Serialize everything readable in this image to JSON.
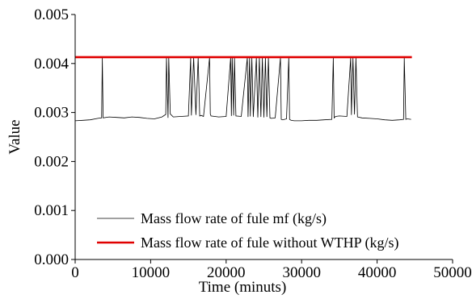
{
  "chart_data": {
    "type": "line",
    "title": "",
    "xlabel": "Time (minuts)",
    "ylabel": "Value",
    "xlim": [
      0,
      50000
    ],
    "ylim": [
      0,
      0.005
    ],
    "xticks": [
      {
        "value": 0,
        "label": "0"
      },
      {
        "value": 10000,
        "label": "10000"
      },
      {
        "value": 20000,
        "label": "20000"
      },
      {
        "value": 30000,
        "label": "30000"
      },
      {
        "value": 40000,
        "label": "40000"
      },
      {
        "value": 50000,
        "label": "50000"
      }
    ],
    "yticks": [
      {
        "value": 0,
        "label": "0.000"
      },
      {
        "value": 0.001,
        "label": "0.001"
      },
      {
        "value": 0.002,
        "label": "0.002"
      },
      {
        "value": 0.003,
        "label": "0.003"
      },
      {
        "value": 0.004,
        "label": "0.004"
      },
      {
        "value": 0.005,
        "label": "0.005"
      }
    ],
    "grid": false,
    "legend_position": "bottom-right",
    "series": [
      {
        "name": "Mass flow rate of fule mf (kg/s)",
        "color": "#000000",
        "x": [
          0,
          1000,
          2000,
          3000,
          3500,
          3600,
          3700,
          4500,
          5500,
          6500,
          7500,
          8500,
          9500,
          10500,
          11500,
          12000,
          12100,
          12300,
          12400,
          12600,
          13000,
          14000,
          15000,
          15300,
          15400,
          15700,
          16000,
          16300,
          16500,
          16700,
          17000,
          17800,
          17900,
          18000,
          19000,
          20000,
          20600,
          20700,
          20800,
          21000,
          21100,
          21300,
          22000,
          22800,
          22900,
          23100,
          23200,
          23400,
          23600,
          24000,
          24200,
          24400,
          24600,
          24800,
          25000,
          25200,
          25400,
          25600,
          25800,
          26000,
          26500,
          27200,
          27300,
          27500,
          28000,
          28300,
          28400,
          28600,
          29000,
          30000,
          31000,
          32000,
          33000,
          34000,
          34200,
          34300,
          34500,
          35000,
          36000,
          36500,
          36600,
          36800,
          37000,
          37200,
          37400,
          38000,
          39000,
          40000,
          41000,
          42000,
          43000,
          43500,
          43600,
          43800,
          44000,
          44500
        ],
        "y": [
          0.00283,
          0.00284,
          0.00285,
          0.00288,
          0.00289,
          0.00412,
          0.00289,
          0.00291,
          0.0029,
          0.00289,
          0.00291,
          0.0029,
          0.00288,
          0.00287,
          0.00291,
          0.00296,
          0.00412,
          0.00289,
          0.00412,
          0.00297,
          0.00291,
          0.00292,
          0.00293,
          0.00412,
          0.00294,
          0.00412,
          0.00295,
          0.00412,
          0.00293,
          0.00294,
          0.00292,
          0.00412,
          0.00297,
          0.00293,
          0.00291,
          0.00292,
          0.00412,
          0.00293,
          0.00412,
          0.00294,
          0.00412,
          0.00293,
          0.00292,
          0.00412,
          0.00291,
          0.00412,
          0.00292,
          0.00412,
          0.00291,
          0.00412,
          0.0029,
          0.00412,
          0.00291,
          0.00412,
          0.0029,
          0.00412,
          0.00291,
          0.00412,
          0.00289,
          0.00288,
          0.00289,
          0.00412,
          0.00286,
          0.00285,
          0.00287,
          0.00412,
          0.00286,
          0.00284,
          0.00283,
          0.00283,
          0.00284,
          0.00284,
          0.00285,
          0.00286,
          0.00412,
          0.00289,
          0.00292,
          0.00293,
          0.00292,
          0.00412,
          0.00295,
          0.00412,
          0.00296,
          0.00412,
          0.00291,
          0.00289,
          0.00288,
          0.00287,
          0.00285,
          0.00284,
          0.00285,
          0.00286,
          0.00412,
          0.00286,
          0.00287,
          0.00286
        ]
      },
      {
        "name": "Mass flow rate of fule without WTHP (kg/s)",
        "color": "#e00000",
        "x": [
          0,
          44600
        ],
        "y": [
          0.00413,
          0.00413
        ]
      }
    ]
  }
}
